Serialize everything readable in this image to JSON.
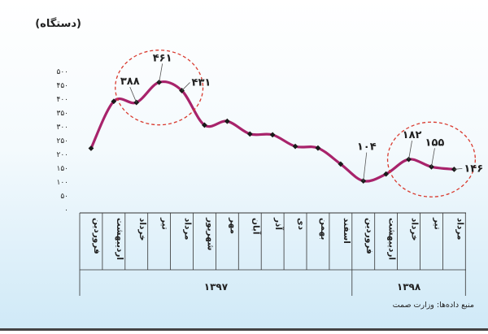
{
  "chart_data": {
    "type": "line",
    "unit_label": "(دستگاه)",
    "source": "منبع داده‌ها: وزارت صمت",
    "ylim": [
      0,
      500
    ],
    "y_ticks": [
      0,
      50,
      100,
      150,
      200,
      250,
      300,
      350,
      400,
      450,
      500
    ],
    "y_tick_labels": [
      "۰",
      "۵۰",
      "۱۰۰",
      "۱۵۰",
      "۲۰۰",
      "۲۵۰",
      "۳۰۰",
      "۳۵۰",
      "۴۰۰",
      "۴۵۰",
      "۵۰۰"
    ],
    "categories": [
      "فروردین",
      "اردیبهشت",
      "خرداد",
      "تیر",
      "مرداد",
      "شهریور",
      "مهر",
      "آبان",
      "آذر",
      "دی",
      "بهمن",
      "اسفند",
      "فروردین",
      "اردیبهشت",
      "خرداد",
      "تیر",
      "مرداد"
    ],
    "values": [
      222,
      392,
      388,
      461,
      431,
      306,
      320,
      274,
      271,
      229,
      223,
      165,
      104,
      129,
      182,
      155,
      146
    ],
    "year_groups": [
      {
        "label": "۱۳۹۷",
        "count": 12
      },
      {
        "label": "۱۳۹۸",
        "count": 5
      }
    ],
    "data_labels": [
      {
        "index": 2,
        "text": "۳۸۸"
      },
      {
        "index": 3,
        "text": "۴۶۱"
      },
      {
        "index": 4,
        "text": "۴۳۱"
      },
      {
        "index": 12,
        "text": "۱۰۴"
      },
      {
        "index": 14,
        "text": "۱۸۲"
      },
      {
        "index": 15,
        "text": "۱۵۵"
      },
      {
        "index": 16,
        "text": "۱۴۶"
      }
    ],
    "highlight_circles": [
      {
        "from": 2,
        "to": 4
      },
      {
        "from": 14,
        "to": 16
      }
    ],
    "colors": {
      "line": "#a8236b",
      "marker": "#1a1a1a",
      "highlight": "#d93a2f",
      "callout": "#555555"
    },
    "grid": false
  }
}
